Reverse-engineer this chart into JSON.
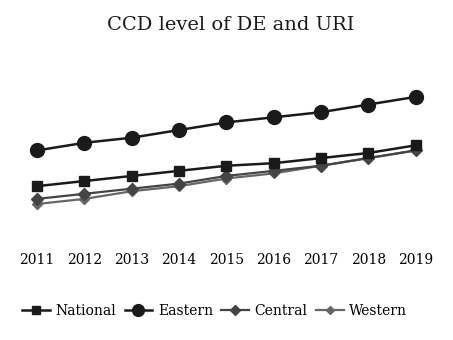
{
  "title": "CCD level of DE and URI",
  "years": [
    2011,
    2012,
    2013,
    2014,
    2015,
    2016,
    2017,
    2018,
    2019
  ],
  "series_order": [
    "National",
    "Eastern",
    "Central",
    "Western"
  ],
  "series": {
    "National": {
      "values": [
        0.48,
        0.5,
        0.52,
        0.54,
        0.56,
        0.57,
        0.59,
        0.61,
        0.64
      ],
      "color": "#1a1a1a",
      "marker": "s",
      "markersize": 7,
      "linewidth": 1.8,
      "zorder": 3
    },
    "Eastern": {
      "values": [
        0.62,
        0.65,
        0.67,
        0.7,
        0.73,
        0.75,
        0.77,
        0.8,
        0.83
      ],
      "color": "#1a1a1a",
      "marker": "o",
      "markersize": 10,
      "linewidth": 1.8,
      "zorder": 4
    },
    "Central": {
      "values": [
        0.43,
        0.45,
        0.47,
        0.49,
        0.52,
        0.54,
        0.56,
        0.59,
        0.62
      ],
      "color": "#444444",
      "marker": "D",
      "markersize": 6,
      "linewidth": 1.6,
      "zorder": 2
    },
    "Western": {
      "values": [
        0.41,
        0.43,
        0.46,
        0.48,
        0.51,
        0.53,
        0.56,
        0.59,
        0.62
      ],
      "color": "#666666",
      "marker": "D",
      "markersize": 5,
      "linewidth": 1.6,
      "zorder": 1
    }
  },
  "ylim": [
    0.25,
    1.05
  ],
  "xlim": [
    2010.6,
    2019.6
  ],
  "background_color": "#ffffff",
  "plot_bg_color": "#ffffff",
  "grid_color": "#cccccc",
  "title_fontsize": 14,
  "tick_fontsize": 10,
  "legend_fontsize": 10
}
